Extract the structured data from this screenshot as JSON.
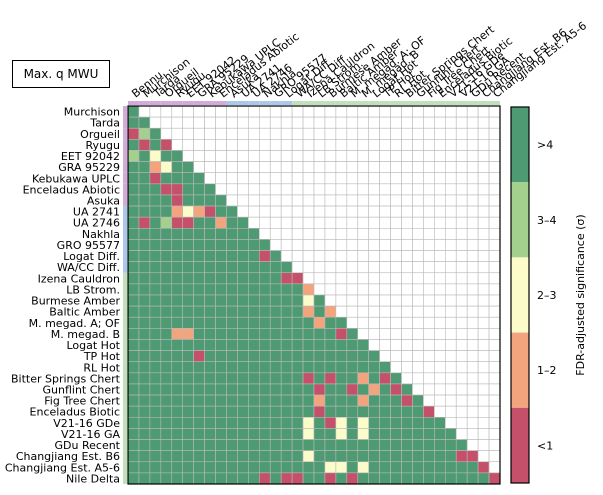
{
  "chart_data": {
    "type": "heatmap",
    "title": "Max. q MWU",
    "labels": [
      "Murchison",
      "Tarda",
      "Orgueil",
      "Ryugu",
      "EET 92042",
      "GRA 95229",
      "Kebukawa UPLC",
      "Enceladus Abiotic",
      "Asuka",
      "UA 2741",
      "UA 2746",
      "Nakhla",
      "GRO 95577",
      "Logat Diff.",
      "WA/CC Diff.",
      "Izena Cauldron",
      "LB Strom.",
      "Burmese Amber",
      "Baltic Amber",
      "M. megad. A; OF",
      "M. megad. B",
      "Logat Hot",
      "TP Hot",
      "RL Hot",
      "Bitter Springs Chert",
      "Gunflint Chert",
      "Fig Tree Chert",
      "Enceladus Biotic",
      "V21-16 GDe",
      "V21-16 GA",
      "GDu Recent",
      "Changjiang Est. B6",
      "Changjiang Est. A5-6",
      "Nile Delta"
    ],
    "column_labels": [
      "Bennu",
      "Murchison",
      "Tarda",
      "Orgueil",
      "Ryugu",
      "EET 92042",
      "GRA 95229",
      "Kebukawa UPLC",
      "Enceladus Abiotic",
      "Asuka",
      "UA 2741",
      "UA 2746",
      "Nakhla",
      "GRO 95577",
      "Logat Diff.",
      "WA/CC Diff.",
      "Izena Cauldron",
      "LB Strom.",
      "Burmese Amber",
      "Baltic Amber",
      "M. megad. A; OF",
      "M. megad. B",
      "Logat Hot",
      "TP Hot",
      "RL Hot",
      "Bitter Springs Chert",
      "Gunflint Chert",
      "Fig Tree Chert",
      "Enceladus Biotic",
      "V21-16 GDe",
      "V21-16 GA",
      "GDu Recent",
      "Changjiang Est. B6",
      "Changjiang Est. A5-6"
    ],
    "group_colors": [
      "#d7a8dc",
      "#d7a8dc",
      "#d7a8dc",
      "#d7a8dc",
      "#d7a8dc",
      "#d7a8dc",
      "#d7a8dc",
      "#d7a8dc",
      "#d7a8dc",
      "#a8c8ec",
      "#a8c8ec",
      "#a8c8ec",
      "#a8c8ec",
      "#a8c8ec",
      "#a8c8ec",
      "#bfe0b8",
      "#bfe0b8",
      "#bfe0b8",
      "#bfe0b8",
      "#bfe0b8",
      "#bfe0b8",
      "#bfe0b8",
      "#bfe0b8",
      "#bfe0b8",
      "#bfe0b8",
      "#bfe0b8",
      "#bfe0b8",
      "#bfe0b8",
      "#bfe0b8",
      "#bfe0b8",
      "#bfe0b8",
      "#bfe0b8",
      "#bfe0b8",
      "#bfe0b8"
    ],
    "colorbar": {
      "label": "FDR-adjusted significance (σ)",
      "bins": [
        ">4",
        "3–4",
        "2–3",
        "1–2",
        "<1"
      ],
      "colors": [
        "#4e9a72",
        "#a3d08c",
        "#fcfccb",
        "#f3a47c",
        "#c4506a"
      ]
    },
    "levels_note": "0 = >4, 1 = 3–4, 2 = 2–3, 3 = 1–2, 4 = <1",
    "matrix": [
      [
        0
      ],
      [
        0,
        0
      ],
      [
        4,
        1,
        0
      ],
      [
        0,
        4,
        0,
        4
      ],
      [
        1,
        0,
        2,
        0,
        0
      ],
      [
        0,
        0,
        3,
        2,
        0,
        0
      ],
      [
        0,
        0,
        4,
        0,
        0,
        0,
        0
      ],
      [
        0,
        0,
        0,
        4,
        4,
        0,
        0,
        0
      ],
      [
        0,
        0,
        0,
        0,
        4,
        0,
        0,
        0,
        0
      ],
      [
        0,
        0,
        0,
        0,
        3,
        2,
        3,
        4,
        0,
        0
      ],
      [
        0,
        4,
        0,
        1,
        4,
        4,
        0,
        0,
        3,
        0,
        0
      ],
      [
        0,
        0,
        0,
        0,
        0,
        0,
        0,
        0,
        0,
        0,
        0,
        0
      ],
      [
        0,
        0,
        0,
        0,
        0,
        0,
        0,
        0,
        0,
        0,
        0,
        0,
        0
      ],
      [
        0,
        0,
        0,
        0,
        0,
        0,
        0,
        0,
        0,
        0,
        0,
        0,
        4,
        0
      ],
      [
        0,
        0,
        0,
        0,
        0,
        0,
        0,
        0,
        0,
        0,
        0,
        0,
        0,
        0,
        0
      ],
      [
        0,
        0,
        0,
        0,
        0,
        0,
        0,
        0,
        0,
        0,
        0,
        0,
        0,
        0,
        4,
        4
      ],
      [
        0,
        0,
        0,
        0,
        0,
        0,
        0,
        0,
        0,
        0,
        0,
        0,
        0,
        0,
        0,
        0,
        3,
        0
      ],
      [
        0,
        0,
        0,
        0,
        0,
        0,
        0,
        0,
        0,
        0,
        0,
        0,
        0,
        0,
        0,
        0,
        2,
        0,
        4
      ],
      [
        0,
        0,
        0,
        0,
        0,
        0,
        0,
        0,
        0,
        0,
        0,
        0,
        0,
        0,
        0,
        0,
        3,
        0,
        3,
        0
      ],
      [
        0,
        0,
        0,
        0,
        0,
        0,
        0,
        0,
        0,
        0,
        0,
        0,
        0,
        0,
        0,
        0,
        0,
        3,
        0,
        0,
        0
      ],
      [
        0,
        0,
        0,
        0,
        3,
        3,
        0,
        0,
        0,
        0,
        0,
        0,
        0,
        0,
        0,
        0,
        0,
        0,
        0,
        4,
        0,
        0
      ],
      [
        0,
        0,
        0,
        0,
        0,
        0,
        0,
        0,
        0,
        0,
        0,
        0,
        0,
        0,
        0,
        0,
        0,
        0,
        0,
        0,
        0,
        0,
        0
      ],
      [
        0,
        0,
        0,
        0,
        0,
        0,
        4,
        0,
        0,
        0,
        0,
        0,
        0,
        0,
        0,
        0,
        0,
        0,
        0,
        0,
        0,
        0,
        0,
        0
      ],
      [
        0,
        0,
        0,
        0,
        0,
        0,
        0,
        0,
        0,
        0,
        0,
        0,
        0,
        0,
        0,
        0,
        0,
        0,
        0,
        0,
        0,
        0,
        0,
        0,
        0
      ],
      [
        0,
        0,
        0,
        0,
        0,
        0,
        0,
        0,
        0,
        0,
        0,
        0,
        0,
        0,
        0,
        0,
        4,
        0,
        4,
        0,
        0,
        3,
        0,
        4,
        0,
        0
      ],
      [
        0,
        0,
        0,
        0,
        0,
        0,
        0,
        0,
        0,
        0,
        0,
        0,
        0,
        0,
        0,
        0,
        0,
        4,
        0,
        0,
        4,
        0,
        3,
        0,
        4,
        0,
        0
      ],
      [
        0,
        0,
        0,
        0,
        0,
        0,
        0,
        0,
        0,
        0,
        0,
        0,
        0,
        0,
        0,
        0,
        0,
        3,
        0,
        0,
        0,
        3,
        0,
        0,
        0,
        4,
        0,
        0
      ],
      [
        0,
        0,
        0,
        0,
        0,
        0,
        0,
        0,
        0,
        0,
        0,
        0,
        0,
        0,
        0,
        0,
        0,
        4,
        0,
        0,
        0,
        0,
        0,
        0,
        0,
        0,
        0,
        4,
        0
      ],
      [
        0,
        0,
        0,
        0,
        0,
        0,
        0,
        0,
        0,
        0,
        0,
        0,
        0,
        0,
        0,
        0,
        2,
        0,
        4,
        2,
        0,
        2,
        0,
        0,
        0,
        0,
        0,
        0,
        0,
        4
      ],
      [
        0,
        0,
        0,
        0,
        0,
        0,
        0,
        0,
        0,
        0,
        0,
        0,
        0,
        0,
        0,
        0,
        2,
        0,
        0,
        2,
        0,
        2,
        0,
        0,
        0,
        0,
        0,
        0,
        0,
        0,
        0
      ],
      [
        0,
        0,
        0,
        0,
        0,
        0,
        0,
        0,
        0,
        0,
        0,
        0,
        0,
        0,
        0,
        0,
        0,
        0,
        0,
        0,
        0,
        0,
        0,
        0,
        0,
        0,
        0,
        0,
        0,
        0,
        0,
        0
      ],
      [
        0,
        0,
        0,
        0,
        0,
        0,
        0,
        0,
        0,
        0,
        0,
        0,
        0,
        0,
        0,
        0,
        2,
        0,
        0,
        0,
        0,
        0,
        0,
        0,
        0,
        0,
        0,
        0,
        0,
        0,
        4,
        4,
        0
      ],
      [
        0,
        0,
        0,
        0,
        0,
        0,
        0,
        0,
        0,
        0,
        0,
        0,
        0,
        0,
        0,
        0,
        0,
        0,
        2,
        2,
        0,
        2,
        0,
        0,
        0,
        0,
        0,
        0,
        0,
        0,
        0,
        0,
        4,
        0
      ],
      [
        0,
        0,
        0,
        0,
        0,
        0,
        0,
        0,
        0,
        0,
        0,
        0,
        4,
        0,
        4,
        4,
        0,
        0,
        4,
        0,
        4,
        0,
        0,
        0,
        0,
        0,
        0,
        0,
        0,
        0,
        0,
        0,
        0,
        4
      ]
    ]
  }
}
